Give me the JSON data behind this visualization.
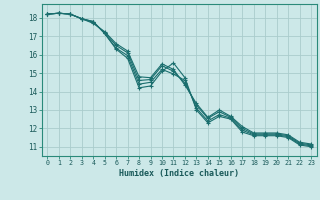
{
  "title": "",
  "xlabel": "Humidex (Indice chaleur)",
  "bg_color": "#cce8e8",
  "grid_color": "#aacccc",
  "line_color": "#1a6e6e",
  "xlim": [
    -0.5,
    23.5
  ],
  "ylim": [
    10.5,
    18.75
  ],
  "xticks": [
    0,
    1,
    2,
    3,
    4,
    5,
    6,
    7,
    8,
    9,
    10,
    11,
    12,
    13,
    14,
    15,
    16,
    17,
    18,
    19,
    20,
    21,
    22,
    23
  ],
  "yticks": [
    11,
    12,
    13,
    14,
    15,
    16,
    17,
    18
  ],
  "series": [
    [
      18.2,
      18.25,
      18.2,
      17.95,
      17.8,
      17.15,
      16.3,
      15.8,
      14.2,
      14.3,
      15.1,
      15.55,
      14.75,
      13.0,
      12.3,
      12.65,
      12.5,
      11.8,
      11.6,
      11.6,
      11.6,
      11.5,
      11.1,
      11.0
    ],
    [
      18.2,
      18.25,
      18.2,
      17.95,
      17.8,
      17.15,
      16.35,
      15.95,
      14.4,
      14.5,
      15.2,
      14.95,
      14.6,
      13.1,
      12.4,
      12.75,
      12.55,
      11.9,
      11.65,
      11.65,
      11.65,
      11.55,
      11.15,
      11.05
    ],
    [
      18.2,
      18.25,
      18.2,
      17.95,
      17.75,
      17.2,
      16.5,
      16.1,
      14.6,
      14.65,
      15.4,
      15.1,
      14.45,
      13.25,
      12.55,
      12.9,
      12.6,
      12.0,
      11.7,
      11.7,
      11.7,
      11.6,
      11.2,
      11.1
    ],
    [
      18.2,
      18.25,
      18.2,
      17.95,
      17.7,
      17.25,
      16.6,
      16.2,
      14.8,
      14.75,
      15.5,
      15.2,
      14.35,
      13.35,
      12.6,
      13.0,
      12.65,
      12.1,
      11.75,
      11.75,
      11.75,
      11.65,
      11.25,
      11.15
    ]
  ]
}
